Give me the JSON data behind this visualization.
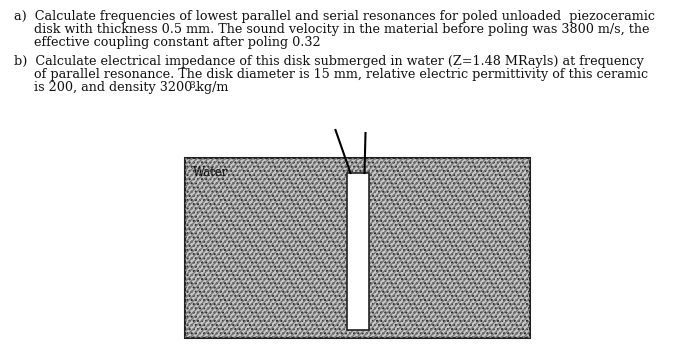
{
  "line_a1": "a)  Calculate frequencies of lowest parallel and serial resonances for poled unloaded  piezoceramic",
  "line_a2": "     disk with thickness 0.5 mm. The sound velocity in the material before poling was 3800 m/s, the",
  "line_a3": "     effective coupling constant after poling 0.32",
  "line_b1": "b)  Calculate electrical impedance of this disk submerged in water (Z=1.48 MRayls) at frequency",
  "line_b2": "     of parallel resonance. The disk diameter is 15 mm, relative electric permittivity of this ceramic",
  "line_b3": "     is 200, and density 3200 kg/m",
  "water_label": "Water",
  "bg_color": "#ffffff",
  "hatch_color": "#aaaaaa",
  "disk_color": "#ffffff",
  "border_color": "#222222",
  "text_color": "#111111",
  "fontsize_text": 9.2,
  "fontsize_label": 8.5,
  "fontsize_super": 6.5
}
